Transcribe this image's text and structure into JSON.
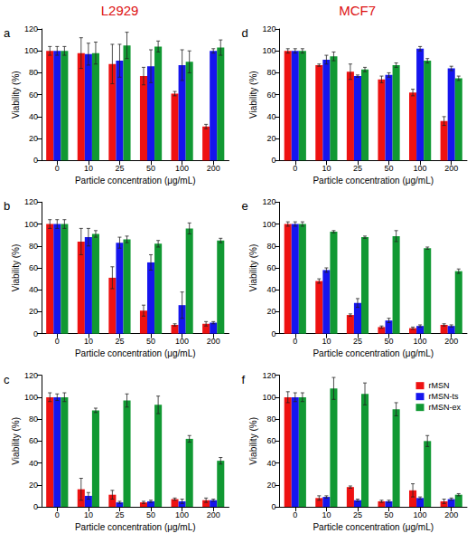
{
  "chart_data": [
    {
      "type": "bar",
      "title": "L2929",
      "annotations": [
        "a"
      ],
      "x_label": "Particle concentration (μg/mL)",
      "y_label": "Viability (%)",
      "categories": [
        "0",
        "10",
        "25",
        "50",
        "100",
        "200"
      ],
      "ylim": [
        0,
        120
      ],
      "yticks": [
        0,
        20,
        40,
        60,
        80,
        100,
        120
      ],
      "grid": false,
      "series": [
        {
          "name": "rMSN",
          "color": "#ee1111",
          "values": [
            100,
            98,
            88,
            77,
            61,
            31
          ],
          "errors": [
            4,
            14,
            18,
            8,
            2,
            2
          ]
        },
        {
          "name": "rMSN-ts",
          "color": "#1515ee",
          "values": [
            100,
            97,
            91,
            86,
            87,
            100
          ],
          "errors": [
            4,
            10,
            15,
            15,
            14,
            2
          ]
        },
        {
          "name": "rMSN-ex",
          "color": "#119933",
          "values": [
            100,
            98,
            105,
            104,
            90,
            103
          ],
          "errors": [
            4,
            10,
            12,
            5,
            10,
            7
          ]
        }
      ]
    },
    {
      "type": "bar",
      "annotations": [
        "b"
      ],
      "x_label": "Particle concentration (μg/mL)",
      "y_label": "Viability (%)",
      "categories": [
        "0",
        "10",
        "25",
        "50",
        "100",
        "200"
      ],
      "ylim": [
        0,
        120
      ],
      "yticks": [
        0,
        20,
        40,
        60,
        80,
        100,
        120
      ],
      "grid": false,
      "series": [
        {
          "name": "rMSN",
          "color": "#ee1111",
          "values": [
            100,
            84,
            51,
            21,
            8,
            9
          ],
          "errors": [
            4,
            12,
            10,
            5,
            1,
            2
          ]
        },
        {
          "name": "rMSN-ts",
          "color": "#1515ee",
          "values": [
            100,
            88,
            83,
            65,
            26,
            10
          ],
          "errors": [
            4,
            8,
            5,
            7,
            12,
            1
          ]
        },
        {
          "name": "rMSN-ex",
          "color": "#119933",
          "values": [
            100,
            91,
            86,
            82,
            96,
            85
          ],
          "errors": [
            4,
            3,
            3,
            3,
            5,
            2
          ]
        }
      ]
    },
    {
      "type": "bar",
      "annotations": [
        "c"
      ],
      "x_label": "Particle concentration (μg/mL)",
      "y_label": "Viability (%)",
      "categories": [
        "0",
        "10",
        "25",
        "50",
        "100",
        "200"
      ],
      "ylim": [
        0,
        120
      ],
      "yticks": [
        0,
        20,
        40,
        60,
        80,
        100,
        120
      ],
      "grid": false,
      "series": [
        {
          "name": "rMSN",
          "color": "#ee1111",
          "values": [
            100,
            16,
            11,
            4,
            7,
            6
          ],
          "errors": [
            4,
            10,
            4,
            1,
            1,
            2
          ]
        },
        {
          "name": "rMSN-ts",
          "color": "#1515ee",
          "values": [
            100,
            10,
            4,
            5,
            5,
            6
          ],
          "errors": [
            3,
            3,
            1,
            1,
            2,
            1
          ]
        },
        {
          "name": "rMSN-ex",
          "color": "#119933",
          "values": [
            100,
            88,
            97,
            93,
            62,
            42
          ],
          "errors": [
            4,
            2,
            6,
            8,
            3,
            3
          ]
        }
      ]
    },
    {
      "type": "bar",
      "title": "MCF7",
      "annotations": [
        "d"
      ],
      "x_label": "Particle concentration (μg/mL)",
      "y_label": "Viability (%)",
      "categories": [
        "0",
        "10",
        "25",
        "50",
        "100",
        "200"
      ],
      "ylim": [
        0,
        120
      ],
      "yticks": [
        0,
        20,
        40,
        60,
        80,
        100,
        120
      ],
      "grid": false,
      "series": [
        {
          "name": "rMSN",
          "color": "#ee1111",
          "values": [
            100,
            87,
            81,
            74,
            62,
            36
          ],
          "errors": [
            2,
            1,
            7,
            3,
            3,
            4
          ]
        },
        {
          "name": "rMSN-ts",
          "color": "#1515ee",
          "values": [
            100,
            92,
            77,
            78,
            102,
            84
          ],
          "errors": [
            2,
            4,
            1,
            2,
            2,
            2
          ]
        },
        {
          "name": "rMSN-ex",
          "color": "#119933",
          "values": [
            100,
            95,
            83,
            87,
            91,
            75
          ],
          "errors": [
            2,
            4,
            2,
            2,
            2,
            2
          ]
        }
      ]
    },
    {
      "type": "bar",
      "annotations": [
        "e"
      ],
      "x_label": "Particle concentration (μg/mL)",
      "y_label": "Viability (%)",
      "categories": [
        "0",
        "10",
        "25",
        "50",
        "100",
        "200"
      ],
      "ylim": [
        0,
        120
      ],
      "yticks": [
        0,
        20,
        40,
        60,
        80,
        100,
        120
      ],
      "grid": false,
      "series": [
        {
          "name": "rMSN",
          "color": "#ee1111",
          "values": [
            100,
            48,
            17,
            6,
            5,
            8
          ],
          "errors": [
            2,
            2,
            1,
            1,
            1,
            1
          ]
        },
        {
          "name": "rMSN-ts",
          "color": "#1515ee",
          "values": [
            100,
            58,
            28,
            12,
            7,
            7
          ],
          "errors": [
            2,
            2,
            4,
            2,
            1,
            1
          ]
        },
        {
          "name": "rMSN-ex",
          "color": "#119933",
          "values": [
            100,
            93,
            88,
            89,
            78,
            57
          ],
          "errors": [
            2,
            1,
            1,
            5,
            1,
            2
          ]
        }
      ]
    },
    {
      "type": "bar",
      "annotations": [
        "f"
      ],
      "x_label": "Particle concentration (μg/mL)",
      "y_label": "Viability (%)",
      "categories": [
        "0",
        "10",
        "25",
        "50",
        "100",
        "200"
      ],
      "ylim": [
        0,
        120
      ],
      "yticks": [
        0,
        20,
        40,
        60,
        80,
        100,
        120
      ],
      "grid": false,
      "legend": "top-right",
      "series": [
        {
          "name": "rMSN",
          "color": "#ee1111",
          "values": [
            100,
            8,
            18,
            5,
            15,
            5
          ],
          "errors": [
            5,
            2,
            1,
            1,
            6,
            2
          ]
        },
        {
          "name": "rMSN-ts",
          "color": "#1515ee",
          "values": [
            100,
            9,
            6,
            5,
            8,
            7
          ],
          "errors": [
            4,
            1,
            1,
            1,
            1,
            1
          ]
        },
        {
          "name": "rMSN-ex",
          "color": "#119933",
          "values": [
            100,
            108,
            103,
            89,
            60,
            11
          ],
          "errors": [
            4,
            10,
            10,
            6,
            5,
            1
          ]
        }
      ]
    }
  ]
}
